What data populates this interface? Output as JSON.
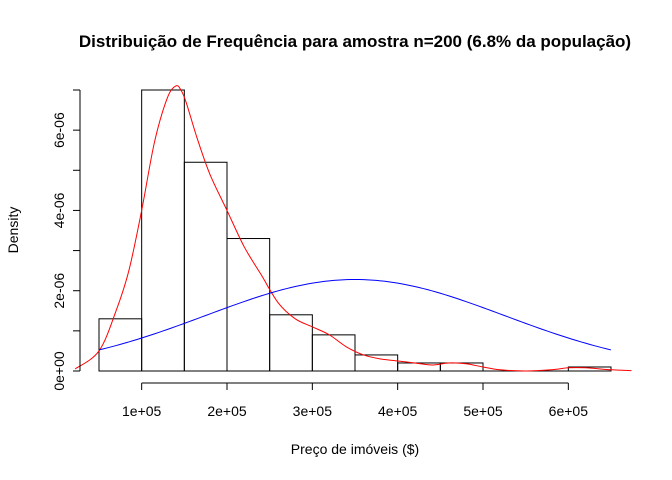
{
  "chart_data": {
    "type": "bar",
    "title": "Distribuição de Frequência para amostra n=200 (6.8% da população)",
    "xlabel": "Preço de imóveis ($)",
    "ylabel": "Density",
    "xlim": [
      50000,
      650000
    ],
    "ylim": [
      0,
      7e-06
    ],
    "x_ticks": [
      {
        "value": 100000,
        "label": "1e+05"
      },
      {
        "value": 200000,
        "label": "2e+05"
      },
      {
        "value": 300000,
        "label": "3e+05"
      },
      {
        "value": 400000,
        "label": "4e+05"
      },
      {
        "value": 500000,
        "label": "5e+05"
      },
      {
        "value": 600000,
        "label": "6e+05"
      }
    ],
    "y_ticks": [
      {
        "value": 0,
        "label": "0e+00"
      },
      {
        "value": 2e-06,
        "label": "2e-06"
      },
      {
        "value": 4e-06,
        "label": "4e-06"
      },
      {
        "value": 6e-06,
        "label": "6e-06"
      }
    ],
    "y_minor_ticks": [
      1e-06,
      3e-06,
      5e-06,
      7e-06
    ],
    "histogram": [
      {
        "x0": 50000,
        "x1": 100000,
        "density": 1.3e-06
      },
      {
        "x0": 100000,
        "x1": 150000,
        "density": 7e-06
      },
      {
        "x0": 150000,
        "x1": 200000,
        "density": 5.2e-06
      },
      {
        "x0": 200000,
        "x1": 250000,
        "density": 3.3e-06
      },
      {
        "x0": 250000,
        "x1": 300000,
        "density": 1.4e-06
      },
      {
        "x0": 300000,
        "x1": 350000,
        "density": 9e-07
      },
      {
        "x0": 350000,
        "x1": 400000,
        "density": 4e-07
      },
      {
        "x0": 400000,
        "x1": 450000,
        "density": 2e-07
      },
      {
        "x0": 450000,
        "x1": 500000,
        "density": 2e-07
      },
      {
        "x0": 500000,
        "x1": 550000,
        "density": 0
      },
      {
        "x0": 550000,
        "x1": 600000,
        "density": 0
      },
      {
        "x0": 600000,
        "x1": 650000,
        "density": 1e-07
      }
    ],
    "series": [
      {
        "color": "#ff0000",
        "x": [
          22000,
          50000,
          70000,
          85000,
          100000,
          115000,
          130000,
          140000,
          146000,
          152000,
          165000,
          180000,
          200000,
          220000,
          240000,
          260000,
          280000,
          300000,
          320000,
          340000,
          360000,
          380000,
          400000,
          420000,
          440000,
          460000,
          480000,
          500000,
          520000,
          550000,
          580000,
          600000,
          620000,
          650000,
          674000
        ],
        "y": [
          5e-08,
          5e-07,
          1.5e-06,
          2.5e-06,
          4e-06,
          5.7e-06,
          6.8e-06,
          7.1e-06,
          7e-06,
          6.7e-06,
          5.8e-06,
          4.9e-06,
          4e-06,
          3.1e-06,
          2.4e-06,
          1.7e-06,
          1.3e-06,
          1.1e-06,
          9e-07,
          6e-07,
          4e-07,
          3e-07,
          2.5e-07,
          2e-07,
          1.5e-07,
          2e-07,
          1.8e-07,
          1e-07,
          3e-08,
          0.0,
          3e-08,
          8e-08,
          8e-08,
          3e-08,
          1e-08
        ]
      },
      {
        "color": "#0000ff",
        "x": [
          50000,
          650000
        ],
        "mean": 350000,
        "sd": 175000
      }
    ]
  }
}
